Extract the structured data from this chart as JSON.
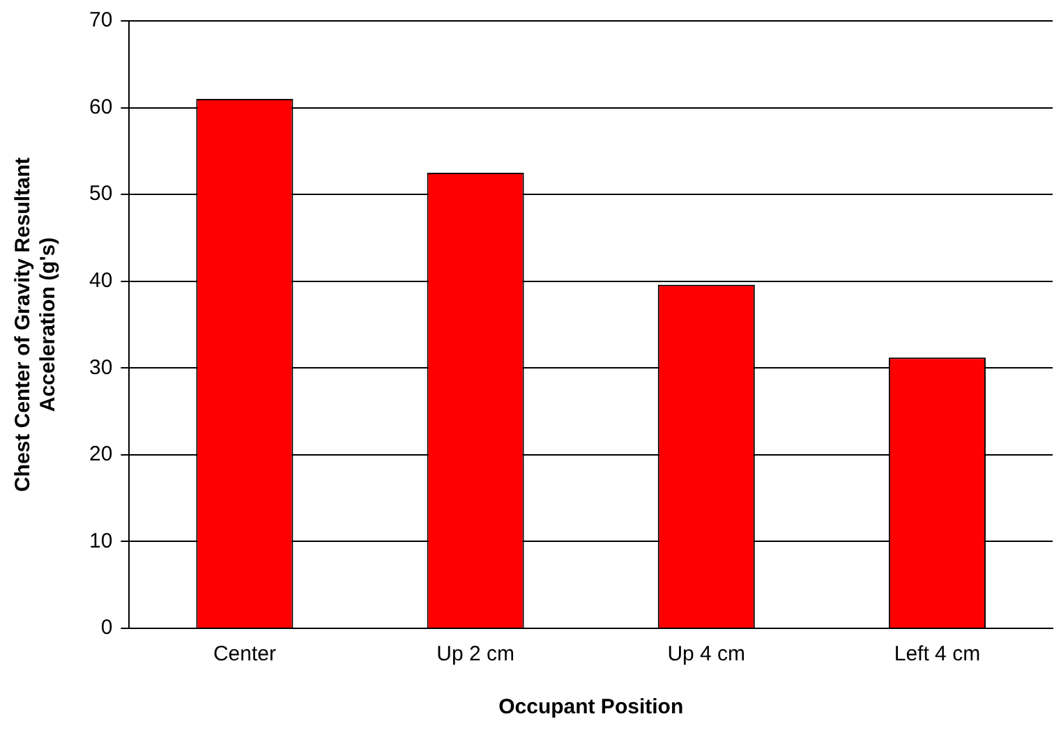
{
  "chart_data": {
    "type": "bar",
    "xlabel": "Occupant Position",
    "ylabel": "Chest Center of Gravity Resultant Acceleration (g's)",
    "categories": [
      "Center",
      "Up 2 cm",
      "Up 4 cm",
      "Left 4 cm"
    ],
    "values": [
      61,
      52.5,
      39.6,
      31.2
    ],
    "color": "#ff0000",
    "ylim": [
      0,
      70
    ],
    "yticks": [
      0,
      10,
      20,
      30,
      40,
      50,
      60,
      70
    ],
    "grid": "y",
    "legend": false
  }
}
